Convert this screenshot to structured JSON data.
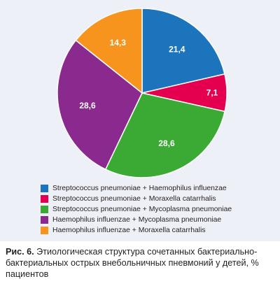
{
  "chart_data": {
    "type": "pie",
    "slices": [
      {
        "label": "Streptococcus pneumoniae + Haemophilus influenzae",
        "value": 21.4,
        "display": "21,4",
        "color": "#1c75bc"
      },
      {
        "label": "Streptococcus pneumoniae + Moraxella catarrhalis",
        "value": 7.1,
        "display": "7,1",
        "color": "#e5004f"
      },
      {
        "label": "Streptococcus pneumoniae + Mycoplasma pneumoniae",
        "value": 28.6,
        "display": "28,6",
        "color": "#3aaa35"
      },
      {
        "label": "Haemophilus influenzae + Mycoplasma pneumoniae",
        "value": 28.6,
        "display": "28,6",
        "color": "#8b2a8e"
      },
      {
        "label": "Haemophilus influenzae + Moraxella catarrhalis",
        "value": 14.3,
        "display": "14,3",
        "color": "#f7941d"
      }
    ],
    "start": "12 o'clock",
    "direction": "clockwise",
    "legend_position": "bottom"
  },
  "caption": {
    "label": "Рис. 6.",
    "text": "Этиологическая структура сочетанных бактериально-бактериальных острых внебольничных пневмоний у детей, % пациентов"
  }
}
